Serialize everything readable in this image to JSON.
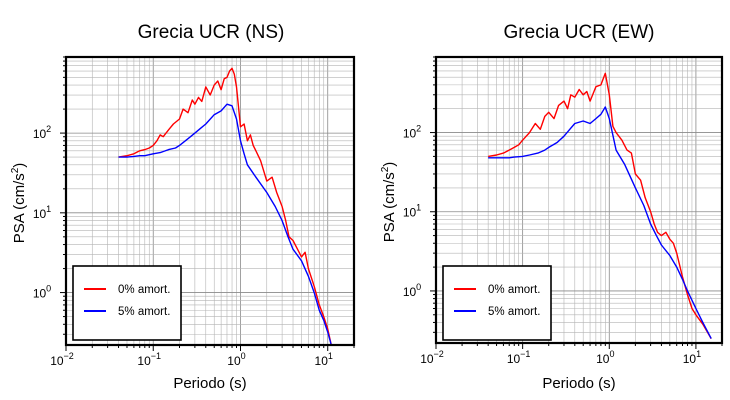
{
  "chart_data": [
    {
      "type": "line",
      "title": "Grecia UCR (NS)",
      "xlabel": "Periodo (s)",
      "ylabel": "PSA (cm/s2)",
      "xscale": "log",
      "yscale": "log",
      "xlim": [
        0.01,
        20
      ],
      "ylim": [
        0.22,
        900
      ],
      "xticks": [
        {
          "base": "10",
          "exp": "−2"
        },
        {
          "base": "10",
          "exp": "−1"
        },
        {
          "base": "10",
          "exp": "0"
        },
        {
          "base": "10",
          "exp": "1"
        }
      ],
      "yticks": [
        {
          "base": "10",
          "exp": "0"
        },
        {
          "base": "10",
          "exp": "1"
        },
        {
          "base": "10",
          "exp": "2"
        }
      ],
      "grid": true,
      "legend_position": "bottom-left",
      "series": [
        {
          "name": "0% amort.",
          "color": "#ff0000",
          "x": [
            0.04,
            0.05,
            0.06,
            0.07,
            0.08,
            0.09,
            0.1,
            0.11,
            0.12,
            0.13,
            0.15,
            0.17,
            0.2,
            0.22,
            0.25,
            0.28,
            0.3,
            0.33,
            0.36,
            0.4,
            0.45,
            0.5,
            0.55,
            0.6,
            0.65,
            0.7,
            0.75,
            0.8,
            0.85,
            0.9,
            1.0,
            1.1,
            1.2,
            1.3,
            1.4,
            1.5,
            1.7,
            2.0,
            2.3,
            2.6,
            3.0,
            3.3,
            3.6,
            4.0,
            4.5,
            5.0,
            5.5,
            6.0,
            7.0,
            8.0,
            9.0,
            10.0,
            11.0
          ],
          "y": [
            50,
            52,
            55,
            60,
            62,
            65,
            70,
            80,
            95,
            90,
            110,
            130,
            150,
            200,
            180,
            260,
            230,
            280,
            250,
            380,
            300,
            400,
            450,
            350,
            480,
            500,
            600,
            650,
            550,
            380,
            120,
            130,
            80,
            95,
            70,
            60,
            45,
            25,
            28,
            18,
            12,
            8,
            5,
            4.5,
            3.5,
            2.8,
            3.2,
            2.0,
            1.2,
            0.7,
            0.5,
            0.35,
            0.22
          ]
        },
        {
          "name": "5% amort.",
          "color": "#0000ff",
          "x": [
            0.04,
            0.05,
            0.06,
            0.07,
            0.08,
            0.1,
            0.12,
            0.15,
            0.18,
            0.2,
            0.25,
            0.3,
            0.35,
            0.4,
            0.5,
            0.6,
            0.7,
            0.8,
            0.9,
            1.0,
            1.1,
            1.2,
            1.5,
            2.0,
            2.5,
            3.0,
            3.5,
            4.0,
            5.0,
            6.0,
            7.0,
            8.0,
            9.0,
            10.0,
            11.0
          ],
          "y": [
            50,
            50,
            51,
            52,
            52,
            55,
            57,
            62,
            65,
            70,
            85,
            100,
            115,
            130,
            170,
            190,
            230,
            220,
            150,
            80,
            55,
            40,
            28,
            18,
            12,
            8,
            5,
            3.5,
            2.5,
            1.6,
            1.0,
            0.6,
            0.45,
            0.32,
            0.22
          ]
        }
      ]
    },
    {
      "type": "line",
      "title": "Grecia UCR (EW)",
      "xlabel": "Periodo (s)",
      "ylabel": "PSA (cm/s2)",
      "xscale": "log",
      "yscale": "log",
      "xlim": [
        0.01,
        20
      ],
      "ylim": [
        0.22,
        900
      ],
      "xticks": [
        {
          "base": "10",
          "exp": "−2"
        },
        {
          "base": "10",
          "exp": "−1"
        },
        {
          "base": "10",
          "exp": "0"
        },
        {
          "base": "10",
          "exp": "1"
        }
      ],
      "yticks": [
        {
          "base": "10",
          "exp": "0"
        },
        {
          "base": "10",
          "exp": "1"
        },
        {
          "base": "10",
          "exp": "2"
        }
      ],
      "grid": true,
      "legend_position": "bottom-left",
      "series": [
        {
          "name": "0% amort.",
          "color": "#ff0000",
          "x": [
            0.04,
            0.05,
            0.06,
            0.07,
            0.08,
            0.09,
            0.1,
            0.12,
            0.14,
            0.16,
            0.18,
            0.2,
            0.23,
            0.26,
            0.3,
            0.33,
            0.36,
            0.4,
            0.45,
            0.5,
            0.55,
            0.6,
            0.7,
            0.8,
            0.9,
            1.0,
            1.1,
            1.2,
            1.4,
            1.6,
            1.8,
            2.0,
            2.3,
            2.6,
            3.0,
            3.3,
            3.6,
            4.0,
            4.5,
            5.0,
            5.5,
            6.0,
            7.0,
            8.0,
            9.0,
            10.0,
            12.0,
            15.0
          ],
          "y": [
            50,
            52,
            55,
            60,
            65,
            70,
            80,
            100,
            130,
            110,
            160,
            180,
            150,
            220,
            250,
            200,
            300,
            280,
            350,
            300,
            330,
            250,
            380,
            400,
            560,
            300,
            120,
            100,
            80,
            60,
            55,
            30,
            25,
            15,
            10,
            7,
            5.5,
            5.0,
            5.5,
            4.5,
            4.0,
            3.0,
            1.5,
            0.9,
            0.6,
            0.5,
            0.38,
            0.25
          ]
        },
        {
          "name": "5% amort.",
          "color": "#0000ff",
          "x": [
            0.04,
            0.05,
            0.06,
            0.07,
            0.08,
            0.1,
            0.12,
            0.15,
            0.18,
            0.2,
            0.25,
            0.3,
            0.35,
            0.4,
            0.5,
            0.6,
            0.7,
            0.8,
            0.9,
            1.0,
            1.2,
            1.5,
            2.0,
            2.5,
            3.0,
            3.5,
            4.0,
            5.0,
            6.0,
            7.0,
            8.0,
            10.0,
            12.0,
            15.0
          ],
          "y": [
            48,
            48,
            48,
            48,
            49,
            50,
            52,
            55,
            60,
            65,
            75,
            90,
            110,
            130,
            140,
            130,
            150,
            170,
            210,
            150,
            60,
            40,
            20,
            12,
            7,
            5,
            3.8,
            2.8,
            2.0,
            1.4,
            1.0,
            0.6,
            0.4,
            0.25
          ]
        }
      ]
    }
  ]
}
